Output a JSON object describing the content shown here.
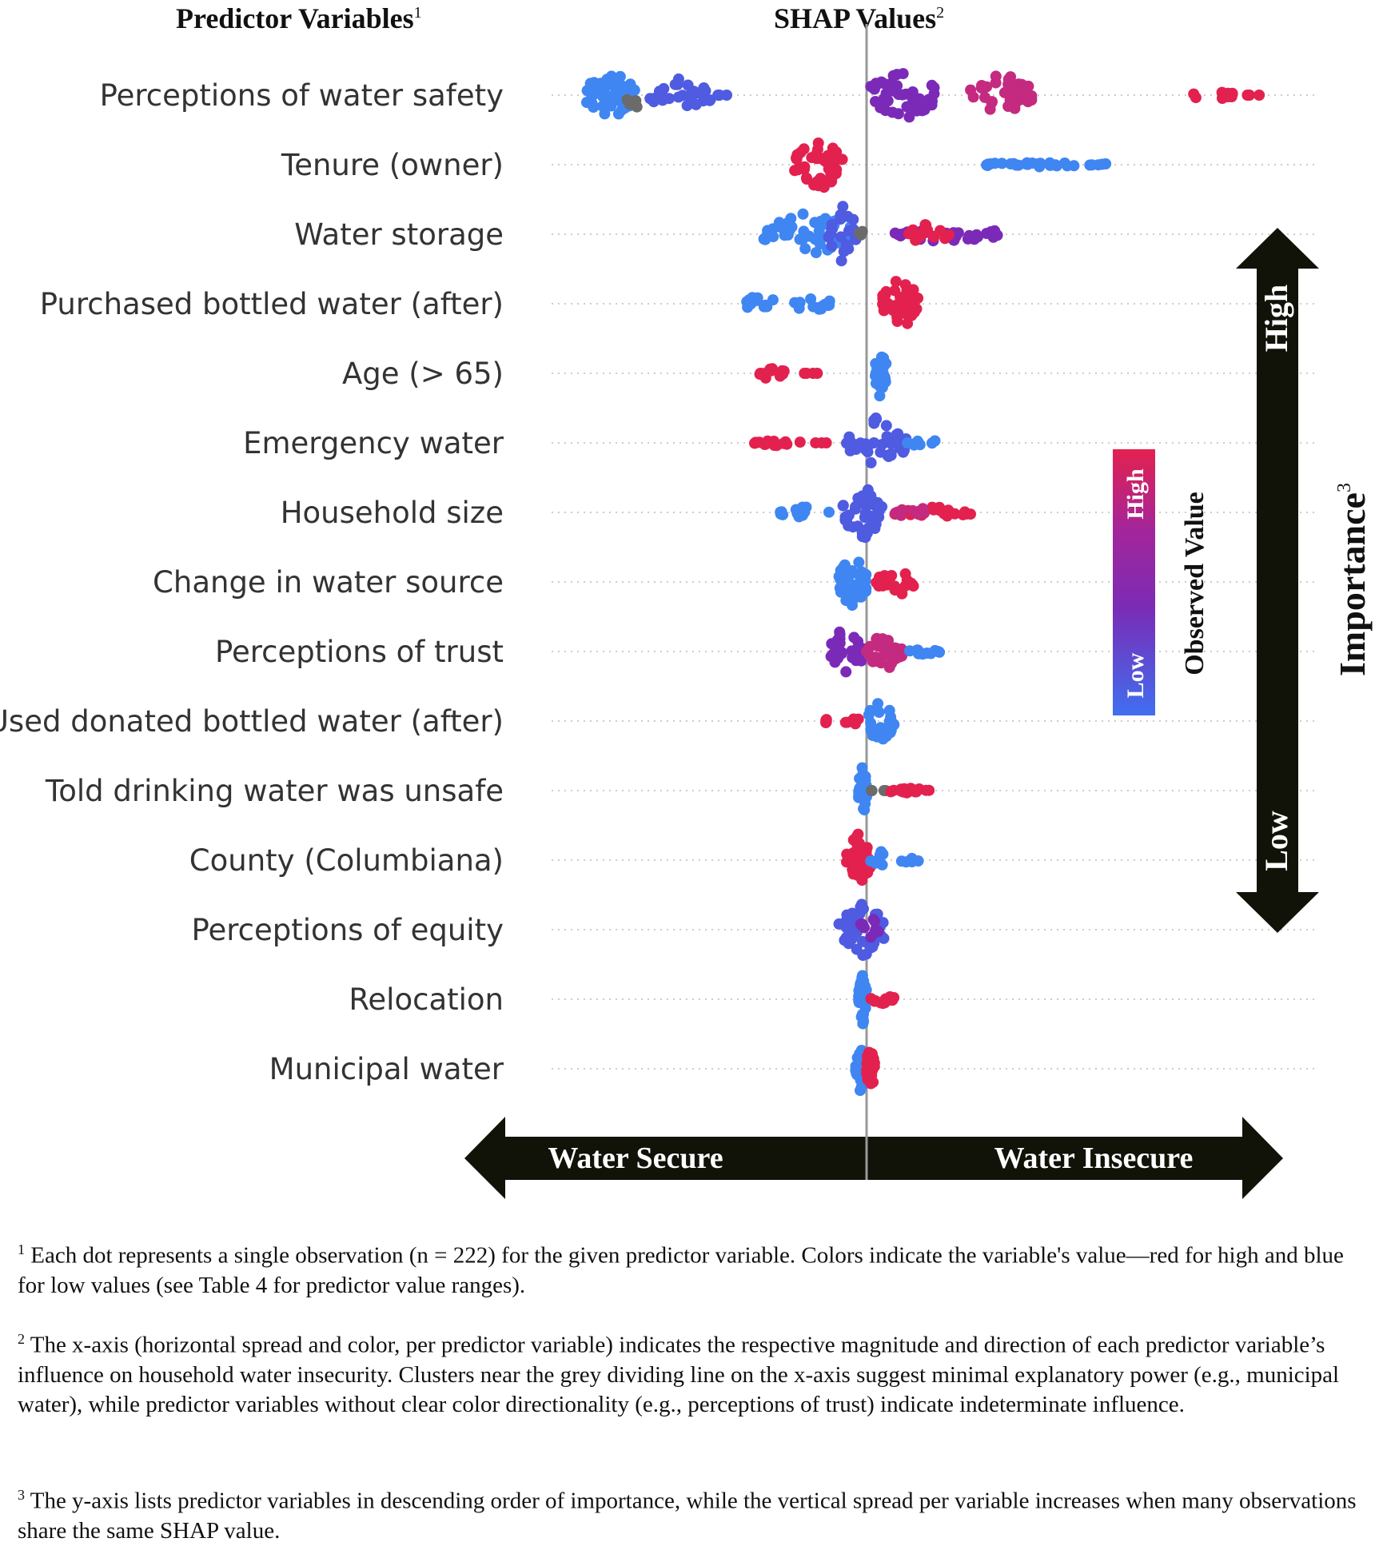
{
  "headers": {
    "predictors": "Predictor Variables",
    "predictors_sup": "1",
    "shap": "SHAP Values",
    "shap_sup": "2"
  },
  "colors": {
    "blue": "#3f86f2",
    "indigo": "#4f5be0",
    "purple": "#7b2ab8",
    "magenta": "#c42a80",
    "red": "#e3214e",
    "grey": "#6b6b6b",
    "arrow": "#111208"
  },
  "chart_data": {
    "type": "scatter",
    "subtype": "beeswarm",
    "xlabel": "SHAP Values",
    "ylabel": "Predictor Variables",
    "xlim": [
      -0.75,
      1.05
    ],
    "center_line": 0,
    "categories": [
      "Perceptions of water safety",
      "Tenure (owner)",
      "Water storage",
      "Purchased bottled water (after)",
      "Age (> 65)",
      "Emergency water",
      "Household size",
      "Change in water source ",
      "Perceptions of trust",
      "Used donated bottled water (after)",
      "Told drinking water was unsafe",
      "County (Columbiana)",
      "Perceptions of equity",
      "Relocation",
      "Municipal water"
    ],
    "clusters": [
      [
        {
          "x": [
            -0.7,
            -0.58
          ],
          "c": "blue",
          "n": 60,
          "h": 1.0
        },
        {
          "x": [
            -0.6,
            -0.56
          ],
          "c": "grey",
          "n": 4,
          "h": 0.6
        },
        {
          "x": [
            -0.55,
            -0.39
          ],
          "c": "indigo",
          "n": 30,
          "h": 0.6
        },
        {
          "x": [
            -0.38,
            -0.34
          ],
          "c": "indigo",
          "n": 3,
          "h": 0
        },
        {
          "x": [
            0.01,
            0.17
          ],
          "c": "purple",
          "n": 45,
          "h": 1.0
        },
        {
          "x": [
            0.26,
            0.42
          ],
          "c": "magenta",
          "n": 40,
          "h": 0.8
        },
        {
          "x": [
            0.81,
            0.92
          ],
          "c": "red",
          "n": 10,
          "h": 0.2
        },
        {
          "x": [
            0.94,
            1.03
          ],
          "c": "red",
          "n": 3,
          "h": 0
        }
      ],
      [
        {
          "x": [
            -0.18,
            -0.06
          ],
          "c": "red",
          "n": 50,
          "h": 1.0
        },
        {
          "x": [
            0.27,
            0.6
          ],
          "c": "blue",
          "n": 30,
          "h": 0.1
        }
      ],
      [
        {
          "x": [
            -0.26,
            -0.03
          ],
          "c": "blue",
          "n": 55,
          "h": 0.8
        },
        {
          "x": [
            -0.1,
            -0.02
          ],
          "c": "indigo",
          "n": 20,
          "h": 1.0
        },
        {
          "x": [
            -0.02,
            0.0
          ],
          "c": "grey",
          "n": 3,
          "h": 0.1
        },
        {
          "x": [
            0.07,
            0.34
          ],
          "c": "purple",
          "n": 30,
          "h": 0.3
        },
        {
          "x": [
            0.1,
            0.22
          ],
          "c": "red",
          "n": 15,
          "h": 0.4
        }
      ],
      [
        {
          "x": [
            -0.3,
            -0.23
          ],
          "c": "blue",
          "n": 12,
          "h": 0.4
        },
        {
          "x": [
            -0.18,
            -0.09
          ],
          "c": "blue",
          "n": 14,
          "h": 0.4
        },
        {
          "x": [
            0.04,
            0.13
          ],
          "c": "red",
          "n": 40,
          "h": 1.0
        }
      ],
      [
        {
          "x": [
            -0.29,
            -0.2
          ],
          "c": "red",
          "n": 14,
          "h": 0.2
        },
        {
          "x": [
            -0.16,
            -0.12
          ],
          "c": "red",
          "n": 4,
          "h": 0
        },
        {
          "x": [
            0.02,
            0.05
          ],
          "c": "blue",
          "n": 25,
          "h": 1.0
        }
      ],
      [
        {
          "x": [
            -0.28,
            -0.16
          ],
          "c": "red",
          "n": 14,
          "h": 0.1
        },
        {
          "x": [
            -0.15,
            -0.09
          ],
          "c": "red",
          "n": 3,
          "h": 0
        },
        {
          "x": [
            -0.05,
            0.1
          ],
          "c": "indigo",
          "n": 40,
          "h": 0.9
        },
        {
          "x": [
            0.1,
            0.18
          ],
          "c": "blue",
          "n": 8,
          "h": 0.2
        }
      ],
      [
        {
          "x": [
            -0.23,
            -0.09
          ],
          "c": "blue",
          "n": 15,
          "h": 0.2
        },
        {
          "x": [
            -0.06,
            0.04
          ],
          "c": "indigo",
          "n": 45,
          "h": 1.0
        },
        {
          "x": [
            0.07,
            0.26
          ],
          "c": "red",
          "n": 25,
          "h": 0.2
        },
        {
          "x": [
            0.07,
            0.15
          ],
          "c": "magenta",
          "n": 8,
          "h": 0.3
        }
      ],
      [
        {
          "x": [
            -0.07,
            0.0
          ],
          "c": "blue",
          "n": 45,
          "h": 1.0
        },
        {
          "x": [
            0.02,
            0.15
          ],
          "c": "red",
          "n": 22,
          "h": 0.5
        }
      ],
      [
        {
          "x": [
            -0.09,
            -0.01
          ],
          "c": "purple",
          "n": 30,
          "h": 1.0
        },
        {
          "x": [
            0.0,
            0.09
          ],
          "c": "magenta",
          "n": 30,
          "h": 0.7
        },
        {
          "x": [
            0.09,
            0.19
          ],
          "c": "blue",
          "n": 12,
          "h": 0.1
        }
      ],
      [
        {
          "x": [
            -0.12,
            -0.09
          ],
          "c": "red",
          "n": 4,
          "h": 0.1
        },
        {
          "x": [
            -0.06,
            -0.01
          ],
          "c": "red",
          "n": 5,
          "h": 0.2
        },
        {
          "x": [
            0.0,
            0.07
          ],
          "c": "blue",
          "n": 25,
          "h": 0.9
        }
      ],
      [
        {
          "x": [
            -0.02,
            0.0
          ],
          "c": "blue",
          "n": 30,
          "h": 1.0
        },
        {
          "x": [
            0.01,
            0.05
          ],
          "c": "grey",
          "n": 4,
          "h": 0
        },
        {
          "x": [
            0.05,
            0.16
          ],
          "c": "red",
          "n": 18,
          "h": 0.1
        }
      ],
      [
        {
          "x": [
            -0.05,
            0.01
          ],
          "c": "red",
          "n": 35,
          "h": 1.0
        },
        {
          "x": [
            0.01,
            0.05
          ],
          "c": "blue",
          "n": 8,
          "h": 0.4
        },
        {
          "x": [
            0.07,
            0.13
          ],
          "c": "blue",
          "n": 8,
          "h": 0.1
        }
      ],
      [
        {
          "x": [
            -0.07,
            0.05
          ],
          "c": "indigo",
          "n": 40,
          "h": 1.0
        },
        {
          "x": [
            -0.02,
            0.03
          ],
          "c": "purple",
          "n": 10,
          "h": 0.6
        }
      ],
      [
        {
          "x": [
            -0.02,
            0.0
          ],
          "c": "blue",
          "n": 35,
          "h": 1.0
        },
        {
          "x": [
            0.01,
            0.07
          ],
          "c": "red",
          "n": 15,
          "h": 0.2
        }
      ],
      [
        {
          "x": [
            -0.03,
            0.0
          ],
          "c": "blue",
          "n": 25,
          "h": 0.8
        },
        {
          "x": [
            0.0,
            0.02
          ],
          "c": "red",
          "n": 35,
          "h": 1.0
        }
      ]
    ],
    "direction_arrow": {
      "left": "Water Secure",
      "right": "Water Insecure"
    },
    "importance_arrow": {
      "high": "High",
      "low": "Low",
      "title": "Importance",
      "title_sup": "3"
    },
    "colorbar": {
      "title": "Observed Value",
      "high": "High",
      "low": "Low"
    }
  },
  "footnotes": [
    {
      "sup": "1",
      "text": " Each dot represents a single observation (n = 222) for the given predictor variable. Colors indicate the variable's value—red for high and blue for low values (see Table 4 for predictor value ranges)."
    },
    {
      "sup": "2",
      "text": " The x-axis (horizontal spread and color, per predictor variable) indicates the respective magnitude and direction of each predictor variable’s influence on household water insecurity. Clusters near the grey dividing line on the x-axis suggest minimal explanatory power (e.g., municipal water), while predictor variables without clear color directionality (e.g., perceptions of trust) indicate indeterminate influence."
    },
    {
      "sup": "3",
      "text": " The y-axis lists predictor variables in descending order of importance, while the vertical spread per variable increases when many observations share the same SHAP value."
    }
  ]
}
